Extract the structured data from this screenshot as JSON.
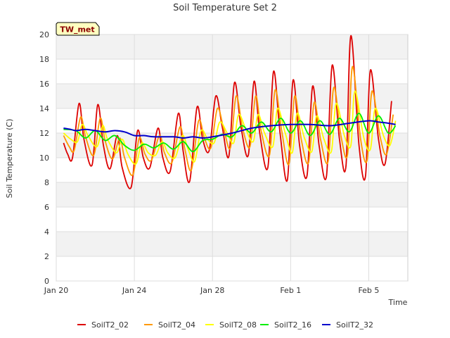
{
  "chart_data": {
    "type": "line",
    "title": "Soil Temperature Set 2",
    "xlabel": "Time",
    "ylabel": "Soil Temperature (C)",
    "badge": "TW_met",
    "x_range": [
      "2024-01-20",
      "2024-02-07"
    ],
    "ylim": [
      0,
      20
    ],
    "y_ticks": [
      0,
      2,
      4,
      6,
      8,
      10,
      12,
      14,
      16,
      18,
      20
    ],
    "x_ticks": [
      {
        "date": "2024-01-20",
        "label": "Jan 20"
      },
      {
        "date": "2024-01-24",
        "label": "Jan 24"
      },
      {
        "date": "2024-01-28",
        "label": "Jan 28"
      },
      {
        "date": "2024-02-01",
        "label": "Feb 1"
      },
      {
        "date": "2024-02-05",
        "label": "Feb 5"
      }
    ],
    "grid": true,
    "legend_position": "bottom",
    "series": [
      {
        "name": "SoilT2_02",
        "color": "#dd0000",
        "dates": [
          "2024-01-20 09:00",
          "2024-01-20 14:00",
          "2024-01-20 20:00",
          "2024-01-21 04:00",
          "2024-01-21 10:00",
          "2024-01-21 20:00",
          "2024-01-22 03:00",
          "2024-01-22 10:00",
          "2024-01-22 18:00",
          "2024-01-23 03:00",
          "2024-01-23 09:00",
          "2024-01-23 20:00",
          "2024-01-24 04:00",
          "2024-01-24 11:00",
          "2024-01-24 19:00",
          "2024-01-25 05:00",
          "2024-01-25 11:00",
          "2024-01-25 20:00",
          "2024-01-26 06:00",
          "2024-01-26 12:00",
          "2024-01-26 20:00",
          "2024-01-27 05:00",
          "2024-01-27 12:00",
          "2024-01-27 20:00",
          "2024-01-28 04:00",
          "2024-01-28 12:00",
          "2024-01-28 20:00",
          "2024-01-29 03:00",
          "2024-01-29 11:00",
          "2024-01-29 20:00",
          "2024-01-30 03:00",
          "2024-01-30 10:00",
          "2024-01-30 20:00",
          "2024-01-31 03:00",
          "2024-01-31 11:00",
          "2024-01-31 20:00",
          "2024-02-01 03:00",
          "2024-02-01 11:00",
          "2024-02-01 20:00",
          "2024-02-02 03:00",
          "2024-02-02 11:00",
          "2024-02-02 20:00",
          "2024-02-03 03:00",
          "2024-02-03 12:00",
          "2024-02-03 20:00",
          "2024-02-04 02:00",
          "2024-02-04 12:00",
          "2024-02-04 20:00",
          "2024-02-05 02:00",
          "2024-02-05 12:00",
          "2024-02-05 20:00",
          "2024-02-06 04:00"
        ],
        "values": [
          11.2,
          10.3,
          10.0,
          14.4,
          11.5,
          9.4,
          14.3,
          11.0,
          9.1,
          11.8,
          9.2,
          7.6,
          12.2,
          10.0,
          9.2,
          12.4,
          10.0,
          8.9,
          13.6,
          10.5,
          8.1,
          14.1,
          11.5,
          10.6,
          15.0,
          12.5,
          10.1,
          16.1,
          12.5,
          10.2,
          16.2,
          12.0,
          9.2,
          17.0,
          12.0,
          8.2,
          16.3,
          11.0,
          8.5,
          15.8,
          11.0,
          8.5,
          17.5,
          11.5,
          9.3,
          19.9,
          11.0,
          8.5,
          17.1,
          11.5,
          9.5,
          14.6
        ]
      },
      {
        "name": "SoilT2_04",
        "color": "#ff9900",
        "dates": [
          "2024-01-20 09:00",
          "2024-01-20 16:00",
          "2024-01-20 22:00",
          "2024-01-21 06:00",
          "2024-01-21 12:00",
          "2024-01-21 22:00",
          "2024-01-22 06:00",
          "2024-01-22 12:00",
          "2024-01-22 21:00",
          "2024-01-23 06:00",
          "2024-01-23 12:00",
          "2024-01-23 22:00",
          "2024-01-24 06:00",
          "2024-01-24 13:00",
          "2024-01-24 21:00",
          "2024-01-25 07:00",
          "2024-01-25 13:00",
          "2024-01-25 22:00",
          "2024-01-26 08:00",
          "2024-01-26 14:00",
          "2024-01-26 22:00",
          "2024-01-27 07:00",
          "2024-01-27 14:00",
          "2024-01-27 22:00",
          "2024-01-28 06:00",
          "2024-01-28 14:00",
          "2024-01-28 22:00",
          "2024-01-29 05:00",
          "2024-01-29 13:00",
          "2024-01-29 22:00",
          "2024-01-30 05:00",
          "2024-01-30 12:00",
          "2024-01-30 22:00",
          "2024-01-31 05:00",
          "2024-01-31 13:00",
          "2024-01-31 22:00",
          "2024-02-01 05:00",
          "2024-02-01 13:00",
          "2024-02-01 22:00",
          "2024-02-02 05:00",
          "2024-02-02 13:00",
          "2024-02-02 22:00",
          "2024-02-03 05:00",
          "2024-02-03 14:00",
          "2024-02-03 22:00",
          "2024-02-04 04:00",
          "2024-02-04 14:00",
          "2024-02-04 22:00",
          "2024-02-05 04:00",
          "2024-02-05 14:00",
          "2024-02-05 22:00",
          "2024-02-06 06:00"
        ],
        "values": [
          11.8,
          10.9,
          10.6,
          13.3,
          11.7,
          10.2,
          13.2,
          11.4,
          9.9,
          11.6,
          10.0,
          8.6,
          11.6,
          10.3,
          9.8,
          11.8,
          10.4,
          9.6,
          12.5,
          10.7,
          9.0,
          13.0,
          11.6,
          10.8,
          14.0,
          12.3,
          10.8,
          15.0,
          12.4,
          10.9,
          15.0,
          12.1,
          10.2,
          15.5,
          12.2,
          9.5,
          15.0,
          11.5,
          9.6,
          14.5,
          11.4,
          9.7,
          15.7,
          11.7,
          10.3,
          17.4,
          11.5,
          9.8,
          15.4,
          11.7,
          10.3,
          13.5
        ]
      },
      {
        "name": "SoilT2_08",
        "color": "#ffff00",
        "dates": [
          "2024-01-20 09:00",
          "2024-01-20 18:00",
          "2024-01-21 02:00",
          "2024-01-21 08:00",
          "2024-01-21 15:00",
          "2024-01-22 02:00",
          "2024-01-22 09:00",
          "2024-01-22 15:00",
          "2024-01-23 02:00",
          "2024-01-23 09:00",
          "2024-01-23 16:00",
          "2024-01-24 02:00",
          "2024-01-24 09:00",
          "2024-01-24 17:00",
          "2024-01-25 02:00",
          "2024-01-25 10:00",
          "2024-01-25 17:00",
          "2024-01-26 02:00",
          "2024-01-26 11:00",
          "2024-01-26 18:00",
          "2024-01-27 02:00",
          "2024-01-27 10:00",
          "2024-01-27 18:00",
          "2024-01-28 02:00",
          "2024-01-28 09:00",
          "2024-01-28 18:00",
          "2024-01-29 02:00",
          "2024-01-29 08:00",
          "2024-01-29 17:00",
          "2024-01-30 02:00",
          "2024-01-30 08:00",
          "2024-01-30 16:00",
          "2024-01-31 02:00",
          "2024-01-31 08:00",
          "2024-01-31 17:00",
          "2024-02-01 02:00",
          "2024-02-01 08:00",
          "2024-02-01 17:00",
          "2024-02-02 02:00",
          "2024-02-02 08:00",
          "2024-02-02 17:00",
          "2024-02-03 02:00",
          "2024-02-03 08:00",
          "2024-02-03 18:00",
          "2024-02-04 02:00",
          "2024-02-04 07:00",
          "2024-02-04 18:00",
          "2024-02-05 02:00",
          "2024-02-05 08:00",
          "2024-02-05 18:00",
          "2024-02-06 02:00",
          "2024-02-06 09:00"
        ],
        "values": [
          12.0,
          11.5,
          11.3,
          12.7,
          11.8,
          10.9,
          12.6,
          11.5,
          10.4,
          11.5,
          10.3,
          9.5,
          11.2,
          10.4,
          10.2,
          11.3,
          10.4,
          10.0,
          11.8,
          10.7,
          9.7,
          12.2,
          11.5,
          11.2,
          12.9,
          12.0,
          11.2,
          13.5,
          12.3,
          11.3,
          13.5,
          12.0,
          10.9,
          14.0,
          12.1,
          10.4,
          13.6,
          11.6,
          10.5,
          13.4,
          11.5,
          10.5,
          14.4,
          11.8,
          11.0,
          15.4,
          11.6,
          10.7,
          14.0,
          11.8,
          11.0,
          13.0
        ]
      },
      {
        "name": "SoilT2_16",
        "color": "#00ee00",
        "dates": [
          "2024-01-20 09:00",
          "2024-01-21 00:00",
          "2024-01-21 12:00",
          "2024-01-22 00:00",
          "2024-01-22 12:00",
          "2024-01-23 00:00",
          "2024-01-23 12:00",
          "2024-01-24 00:00",
          "2024-01-24 12:00",
          "2024-01-25 00:00",
          "2024-01-25 12:00",
          "2024-01-26 00:00",
          "2024-01-26 12:00",
          "2024-01-27 00:00",
          "2024-01-27 12:00",
          "2024-01-28 00:00",
          "2024-01-28 12:00",
          "2024-01-29 00:00",
          "2024-01-29 12:00",
          "2024-01-30 00:00",
          "2024-01-30 12:00",
          "2024-01-31 00:00",
          "2024-01-31 12:00",
          "2024-02-01 00:00",
          "2024-02-01 12:00",
          "2024-02-02 00:00",
          "2024-02-02 12:00",
          "2024-02-03 00:00",
          "2024-02-03 12:00",
          "2024-02-04 00:00",
          "2024-02-04 12:00",
          "2024-02-05 00:00",
          "2024-02-05 12:00",
          "2024-02-06 00:00",
          "2024-02-06 09:00"
        ],
        "values": [
          12.3,
          12.2,
          11.6,
          12.2,
          11.4,
          11.8,
          11.0,
          10.6,
          11.1,
          10.8,
          11.2,
          10.7,
          11.3,
          10.5,
          11.4,
          11.5,
          11.9,
          11.7,
          12.6,
          12.0,
          12.9,
          12.1,
          13.2,
          12.0,
          13.0,
          11.8,
          13.0,
          11.9,
          13.2,
          12.1,
          13.6,
          12.0,
          13.4,
          12.0,
          12.6
        ]
      },
      {
        "name": "SoilT2_32",
        "color": "#0000cc",
        "dates": [
          "2024-01-20 09:00",
          "2024-01-20 18:00",
          "2024-01-21 00:00",
          "2024-01-21 12:00",
          "2024-01-22 00:00",
          "2024-01-22 12:00",
          "2024-01-23 00:00",
          "2024-01-23 12:00",
          "2024-01-24 00:00",
          "2024-01-24 12:00",
          "2024-01-25 00:00",
          "2024-01-26 00:00",
          "2024-01-26 12:00",
          "2024-01-27 00:00",
          "2024-01-27 12:00",
          "2024-01-28 00:00",
          "2024-01-29 00:00",
          "2024-01-30 00:00",
          "2024-01-31 00:00",
          "2024-02-01 00:00",
          "2024-02-02 00:00",
          "2024-02-03 00:00",
          "2024-02-04 00:00",
          "2024-02-05 00:00",
          "2024-02-05 12:00",
          "2024-02-06 00:00",
          "2024-02-06 09:00"
        ],
        "values": [
          12.4,
          12.3,
          12.2,
          12.3,
          12.2,
          12.1,
          12.2,
          12.1,
          11.8,
          11.8,
          11.7,
          11.7,
          11.6,
          11.7,
          11.6,
          11.7,
          12.0,
          12.4,
          12.6,
          12.7,
          12.7,
          12.6,
          12.8,
          13.0,
          12.9,
          12.8,
          12.7
        ]
      }
    ]
  }
}
